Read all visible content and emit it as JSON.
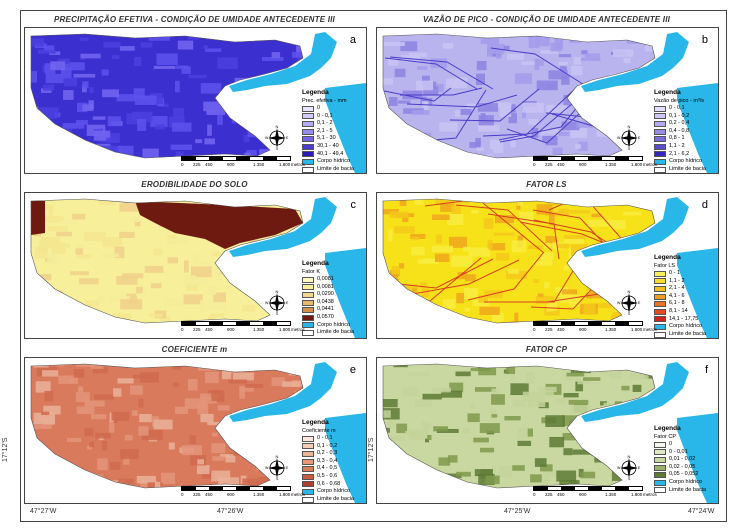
{
  "panels": [
    {
      "id": "a",
      "title": "PRECIPITAÇÃO EFETIVA - CONDIÇÃO DE UMIDADE ANTECEDENTE III",
      "letter": "a",
      "legend_title": "Legenda",
      "legend_subtitle": "Prec. efetiva - mm",
      "palette": [
        "#3c2fd0",
        "#4b40e0",
        "#5e52ee",
        "#7466f2"
      ],
      "items": [
        {
          "label": "0",
          "color": "#e8e6ff"
        },
        {
          "label": "0 - 0,1",
          "color": "#cfcaf8"
        },
        {
          "label": "0,1 - 2",
          "color": "#b3abf2"
        },
        {
          "label": "2,1 - 5",
          "color": "#968cec"
        },
        {
          "label": "5,1 - 30",
          "color": "#7466e4"
        },
        {
          "label": "30,1 - 40",
          "color": "#4b3cd6"
        },
        {
          "label": "40,1 - 49,4",
          "color": "#2a1ab8"
        },
        {
          "label": "Corpo hídrico",
          "color": "#29b6e8"
        },
        {
          "label": "Limite de bacia",
          "color": "#ffffff"
        }
      ]
    },
    {
      "id": "b",
      "title": "VAZÃO DE PICO - CONDIÇÃO DE UMIDADE ANTECEDENTE III",
      "letter": "b",
      "legend_title": "Legenda",
      "legend_subtitle": "Vazão de pico - m³/s",
      "palette": [
        "#b9b3ee",
        "#a39bea",
        "#8c82e2",
        "#c9c4f3"
      ],
      "items": [
        {
          "label": "0 - 0,1",
          "color": "#e3e0fb"
        },
        {
          "label": "0,1 - 0,2",
          "color": "#ccc7f5"
        },
        {
          "label": "0,2 - 0,4",
          "color": "#b2aaee"
        },
        {
          "label": "0,4 - 0,8",
          "color": "#978de6"
        },
        {
          "label": "0,8 - 1",
          "color": "#7b6fdd"
        },
        {
          "label": "1,1 - 2",
          "color": "#5a4cd1"
        },
        {
          "label": "2,1 - 6,2",
          "color": "#3626c0"
        },
        {
          "label": "Corpo hídrico",
          "color": "#29b6e8"
        },
        {
          "label": "Limite de bacia",
          "color": "#ffffff"
        }
      ]
    },
    {
      "id": "c",
      "title": "ERODIBILIDADE DO SOLO",
      "letter": "c",
      "legend_title": "Legenda",
      "legend_subtitle": "Fator K",
      "palette": [
        "#f7ef9a",
        "#f4e68e",
        "#f0d08a",
        "#f5ec9a"
      ],
      "items": [
        {
          "label": "0,0081",
          "color": "#fdf8c0"
        },
        {
          "label": "0,0081",
          "color": "#f7ef9a"
        },
        {
          "label": "0,0290",
          "color": "#f2d68a"
        },
        {
          "label": "0,0438",
          "color": "#e8b870"
        },
        {
          "label": "0,0441",
          "color": "#d4904c"
        },
        {
          "label": "0,0570",
          "color": "#6e1a10"
        },
        {
          "label": "Corpo hídrico",
          "color": "#29b6e8"
        },
        {
          "label": "Limite de bacia",
          "color": "#ffffff"
        }
      ]
    },
    {
      "id": "d",
      "title": "FATOR LS",
      "letter": "d",
      "legend_title": "Legenda",
      "legend_subtitle": "Fator LS",
      "palette": [
        "#f7e21a",
        "#f3c81a",
        "#f0a61c",
        "#f9ec40"
      ],
      "items": [
        {
          "label": "0 - 1",
          "color": "#fbf25a"
        },
        {
          "label": "1,1 - 2",
          "color": "#f7dc2a"
        },
        {
          "label": "2,1 - 4",
          "color": "#f3bf20"
        },
        {
          "label": "4,1 - 6",
          "color": "#ef9c22"
        },
        {
          "label": "6,1 - 8",
          "color": "#ea7424"
        },
        {
          "label": "8,1 - 14",
          "color": "#e24a22"
        },
        {
          "label": "14,1 - 17,75",
          "color": "#d2221c"
        },
        {
          "label": "Corpo hídrico",
          "color": "#29b6e8"
        },
        {
          "label": "Limite de bacia",
          "color": "#ffffff"
        }
      ]
    },
    {
      "id": "e",
      "title": "COEFICIENTE m",
      "letter": "e",
      "legend_title": "Legenda",
      "legend_subtitle": "Coeficiente m",
      "palette": [
        "#d97a5c",
        "#e4957a",
        "#cf6a4e",
        "#eab19a"
      ],
      "items": [
        {
          "label": "0 - 0,1",
          "color": "#fbe8dc"
        },
        {
          "label": "0,1 - 0,2",
          "color": "#f4cdb8"
        },
        {
          "label": "0,2 - 0,3",
          "color": "#ecb298"
        },
        {
          "label": "0,3 - 0,4",
          "color": "#e4977a"
        },
        {
          "label": "0,4 - 0,5",
          "color": "#d97b5e"
        },
        {
          "label": "0,5 - 0,6",
          "color": "#c95c44"
        },
        {
          "label": "0,6 - 0,68",
          "color": "#b03e2e"
        },
        {
          "label": "Corpo hídrico",
          "color": "#29b6e8"
        },
        {
          "label": "Limite de bacia",
          "color": "#ffffff"
        }
      ]
    },
    {
      "id": "f",
      "title": "FATOR CP",
      "letter": "f",
      "legend_title": "Legenda",
      "legend_subtitle": "Fator CP",
      "palette": [
        "#c9d8a0",
        "#c3d39a",
        "#7f9a4c",
        "#5e7a36"
      ],
      "items": [
        {
          "label": "0",
          "color": "#f3f6e8"
        },
        {
          "label": "0 - 0,01",
          "color": "#dfe8c4"
        },
        {
          "label": "0,01 - 0,02",
          "color": "#c8d8a0"
        },
        {
          "label": "0,02 - 0,05",
          "color": "#98b068"
        },
        {
          "label": "0,05 - 0,052",
          "color": "#5f7a36"
        },
        {
          "label": "Corpo hídrico",
          "color": "#29b6e8"
        },
        {
          "label": "Limite de bacia",
          "color": "#ffffff"
        }
      ]
    }
  ],
  "scale_labels": [
    "0",
    "225",
    "450",
    "900",
    "1.350",
    "1.800"
  ],
  "scale_unit": "metros",
  "north_label": "N",
  "compass": {
    "w": "W",
    "e": "E",
    "s": "S"
  },
  "x_ticks": [
    "47°27'W",
    "47°26'W",
    "47°25'W",
    "47°24'W"
  ],
  "y_tick": "17°12'S",
  "water_color": "#29b6e8"
}
